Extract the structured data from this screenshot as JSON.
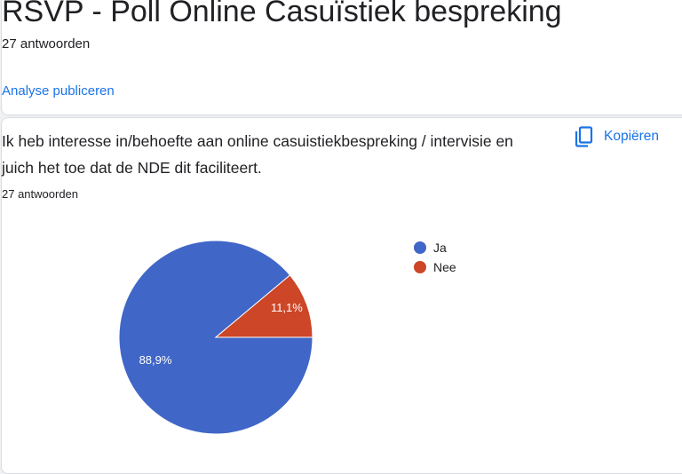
{
  "form": {
    "title": "RSVP - Poll Online Casuïstiek bespreking",
    "responses": "27 antwoorden",
    "publish_link": "Analyse publiceren"
  },
  "question": {
    "text": "Ik heb interesse in/behoefte aan online casuistiekbespreking / intervisie en juich het toe dat de NDE dit faciliteert.",
    "responses": "27 antwoorden",
    "copy_label": "Kopiëren",
    "copy_icon": "copy-icon"
  },
  "chart_data": {
    "type": "pie",
    "legend_position": "right",
    "categories": [
      "Ja",
      "Nee"
    ],
    "values": [
      88.9,
      11.1
    ],
    "labels": [
      "88,9%",
      "11,1%"
    ],
    "colors": [
      "#4066c7",
      "#cc4627"
    ]
  }
}
